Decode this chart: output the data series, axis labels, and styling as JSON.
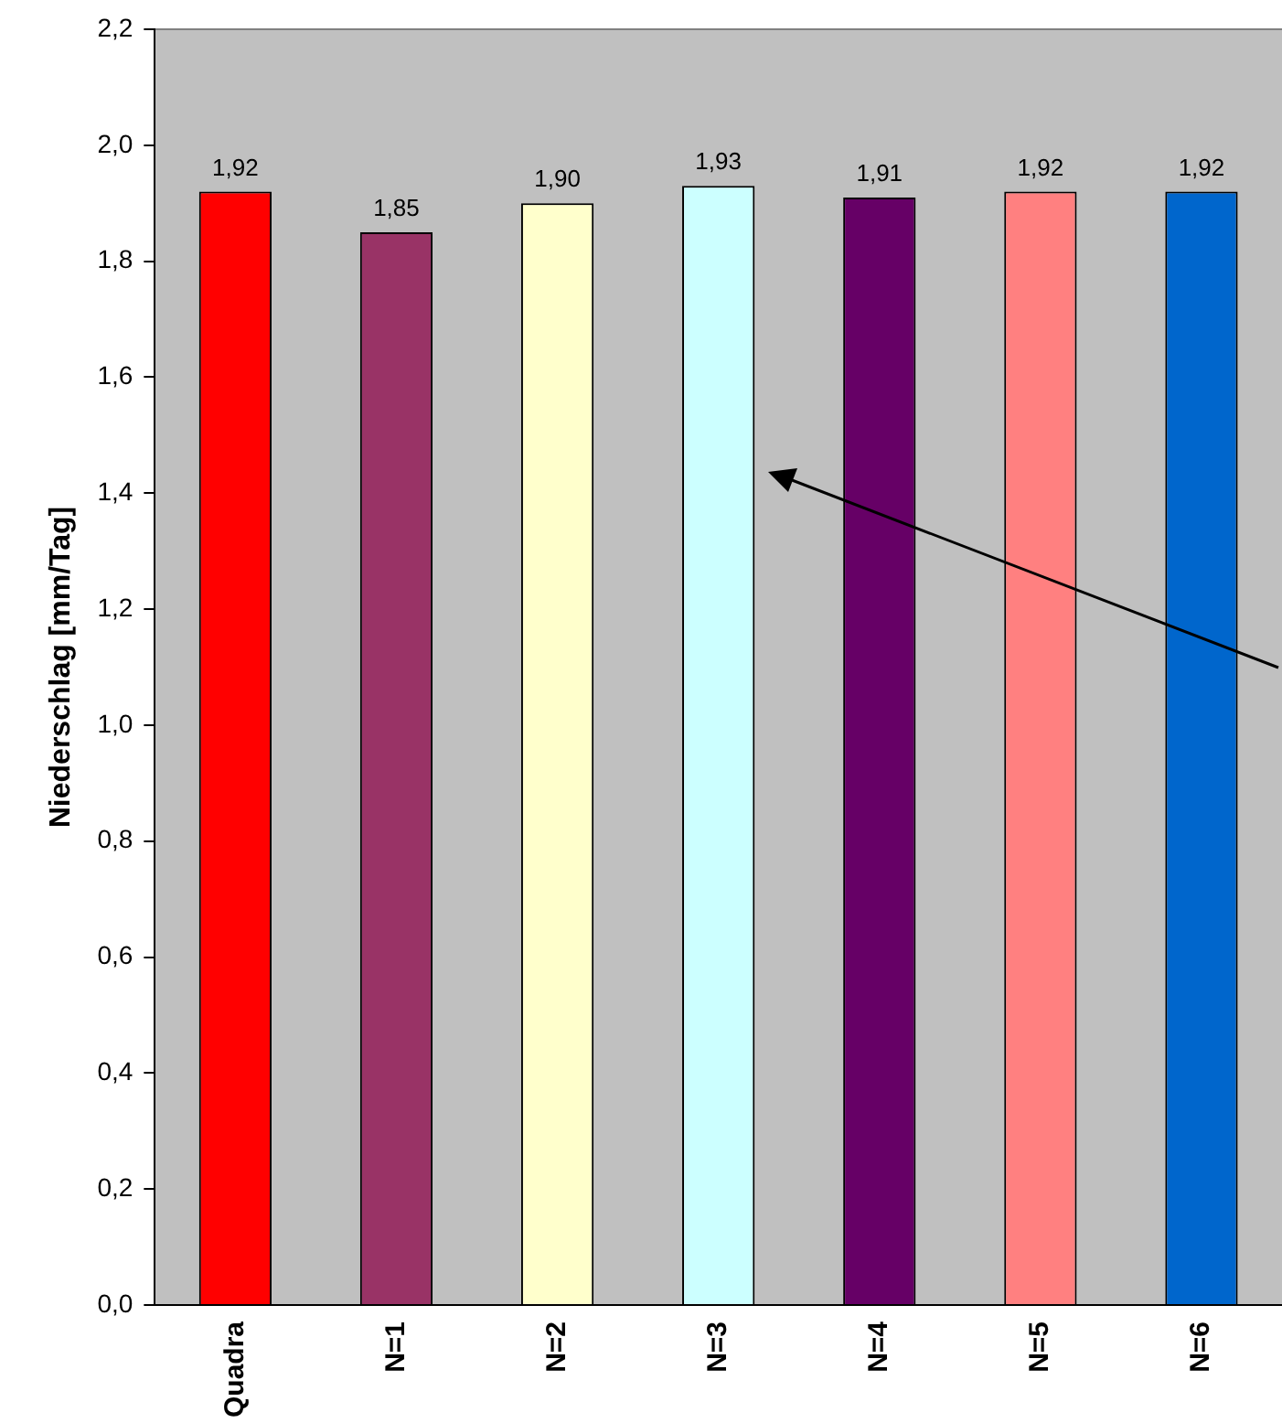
{
  "chart_data": {
    "type": "bar",
    "ylabel": "Niederschlag [mm/Tag]",
    "categories": [
      "Quadra",
      "N=1",
      "N=2",
      "N=3",
      "N=4",
      "N=5",
      "N=6"
    ],
    "values": [
      1.92,
      1.85,
      1.9,
      1.93,
      1.91,
      1.92,
      1.92
    ],
    "colors": [
      "#ff0000",
      "#993366",
      "#ffffcc",
      "#ccffff",
      "#660066",
      "#ff8080",
      "#0066cc"
    ],
    "value_labels": [
      "1,92",
      "1,85",
      "1,90",
      "1,93",
      "1,91",
      "1,92",
      "1,92"
    ],
    "ylim": [
      0,
      2.2
    ],
    "yticks": [
      {
        "value": 0,
        "label": "0,0"
      },
      {
        "value": 0.2,
        "label": "0,2"
      },
      {
        "value": 0.4,
        "label": "0,4"
      },
      {
        "value": 0.6,
        "label": "0,6"
      },
      {
        "value": 0.8,
        "label": "0,8"
      },
      {
        "value": 1.0,
        "label": "1,0"
      },
      {
        "value": 1.2,
        "label": "1,2"
      },
      {
        "value": 1.4,
        "label": "1,4"
      },
      {
        "value": 1.6,
        "label": "1,6"
      },
      {
        "value": 1.8,
        "label": "1,8"
      },
      {
        "value": 2.0,
        "label": "2,0"
      },
      {
        "value": 2.2,
        "label": "2,2"
      }
    ],
    "grid": false,
    "legend": false
  }
}
